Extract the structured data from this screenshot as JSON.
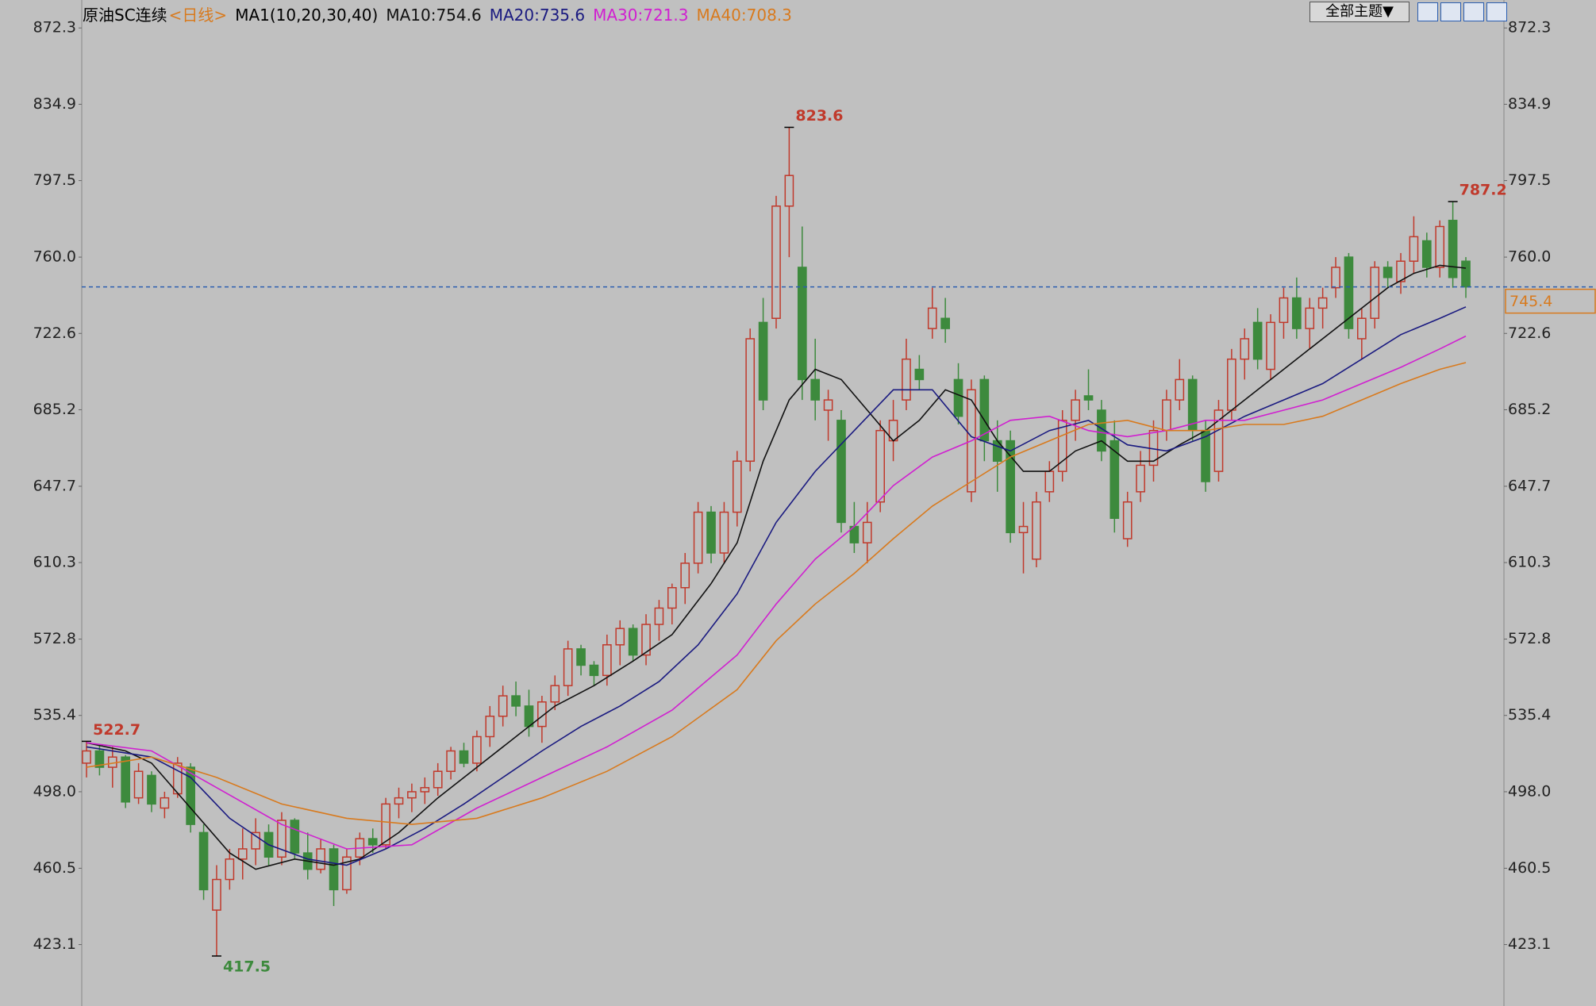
{
  "chart_data": {
    "type": "candlestick",
    "symbol": "原油SC连续",
    "period": "<日线>",
    "indicator": "MA1(10,20,30,40)",
    "theme_button": "全部主题▼",
    "up_color": "#c0392b",
    "down_color": "#3d8a3d",
    "ylim": [
      393,
      886
    ],
    "yticks": [
      423.1,
      460.5,
      {
        "value": 498,
        "label": "498.0"
      },
      535.4,
      572.8,
      610.3,
      647.7,
      685.2,
      722.6,
      {
        "value": 760,
        "label": "760.0"
      },
      797.5,
      834.9,
      872.3
    ],
    "ohlc": [
      [
        512,
        522.7,
        505,
        518
      ],
      [
        518,
        521,
        506,
        510
      ],
      [
        510,
        520,
        500,
        515
      ],
      [
        515,
        516,
        490,
        493
      ],
      [
        495,
        512,
        492,
        508
      ],
      [
        506,
        508,
        488,
        492
      ],
      [
        490,
        498,
        485,
        495
      ],
      [
        497,
        515,
        495,
        512
      ],
      [
        510,
        512,
        478,
        482
      ],
      [
        478,
        482,
        445,
        450
      ],
      [
        440,
        462,
        417.5,
        455
      ],
      [
        455,
        470,
        450,
        465
      ],
      [
        465,
        480,
        455,
        470
      ],
      [
        470,
        485,
        462,
        478
      ],
      [
        478,
        482,
        462,
        466
      ],
      [
        466,
        488,
        462,
        484
      ],
      [
        484,
        485,
        465,
        468
      ],
      [
        468,
        478,
        455,
        460
      ],
      [
        460,
        475,
        458,
        470
      ],
      [
        470,
        472,
        442,
        450
      ],
      [
        450,
        470,
        448,
        466
      ],
      [
        466,
        478,
        462,
        475
      ],
      [
        475,
        480,
        468,
        472
      ],
      [
        472,
        495,
        470,
        492
      ],
      [
        492,
        500,
        485,
        495
      ],
      [
        495,
        502,
        488,
        498
      ],
      [
        498,
        505,
        492,
        500
      ],
      [
        500,
        512,
        496,
        508
      ],
      [
        508,
        520,
        504,
        518
      ],
      [
        518,
        522,
        510,
        512
      ],
      [
        512,
        528,
        508,
        525
      ],
      [
        525,
        540,
        520,
        535
      ],
      [
        535,
        550,
        530,
        545
      ],
      [
        545,
        552,
        535,
        540
      ],
      [
        540,
        548,
        525,
        530
      ],
      [
        530,
        545,
        522,
        542
      ],
      [
        542,
        555,
        538,
        550
      ],
      [
        550,
        572,
        545,
        568
      ],
      [
        568,
        570,
        555,
        560
      ],
      [
        560,
        562,
        550,
        555
      ],
      [
        555,
        575,
        550,
        570
      ],
      [
        570,
        582,
        560,
        578
      ],
      [
        578,
        580,
        562,
        565
      ],
      [
        565,
        585,
        560,
        580
      ],
      [
        580,
        592,
        572,
        588
      ],
      [
        588,
        600,
        580,
        598
      ],
      [
        598,
        615,
        590,
        610
      ],
      [
        610,
        640,
        605,
        635
      ],
      [
        635,
        638,
        610,
        615
      ],
      [
        615,
        640,
        610,
        635
      ],
      [
        635,
        665,
        628,
        660
      ],
      [
        660,
        725,
        655,
        720
      ],
      [
        728,
        740,
        685,
        690
      ],
      [
        730,
        790,
        725,
        785
      ],
      [
        785,
        823.6,
        760,
        800
      ],
      [
        755,
        775,
        690,
        700
      ],
      [
        700,
        720,
        680,
        690
      ],
      [
        685,
        695,
        670,
        690
      ],
      [
        680,
        685,
        625,
        630
      ],
      [
        628,
        640,
        615,
        620
      ],
      [
        620,
        640,
        610,
        630
      ],
      [
        640,
        680,
        635,
        675
      ],
      [
        670,
        690,
        660,
        680
      ],
      [
        690,
        720,
        685,
        710
      ],
      [
        705,
        712,
        695,
        700
      ],
      [
        725,
        745,
        720,
        735
      ],
      [
        730,
        740,
        718,
        725
      ],
      [
        700,
        708,
        678,
        682
      ],
      [
        645,
        700,
        640,
        695
      ],
      [
        700,
        702,
        660,
        670
      ],
      [
        670,
        680,
        645,
        660
      ],
      [
        670,
        675,
        620,
        625
      ],
      [
        625,
        640,
        605,
        628
      ],
      [
        612,
        645,
        608,
        640
      ],
      [
        645,
        660,
        640,
        655
      ],
      [
        655,
        685,
        650,
        680
      ],
      [
        680,
        695,
        670,
        690
      ],
      [
        692,
        705,
        685,
        690
      ],
      [
        685,
        690,
        660,
        665
      ],
      [
        670,
        680,
        625,
        632
      ],
      [
        622,
        645,
        618,
        640
      ],
      [
        645,
        665,
        640,
        658
      ],
      [
        658,
        680,
        650,
        675
      ],
      [
        675,
        695,
        670,
        690
      ],
      [
        690,
        710,
        685,
        700
      ],
      [
        700,
        702,
        670,
        675
      ],
      [
        675,
        680,
        645,
        650
      ],
      [
        655,
        690,
        650,
        685
      ],
      [
        685,
        715,
        680,
        710
      ],
      [
        710,
        725,
        700,
        720
      ],
      [
        728,
        735,
        705,
        710
      ],
      [
        705,
        732,
        700,
        728
      ],
      [
        728,
        745,
        720,
        740
      ],
      [
        740,
        750,
        720,
        725
      ],
      [
        725,
        740,
        715,
        735
      ],
      [
        735,
        745,
        725,
        740
      ],
      [
        745,
        760,
        740,
        755
      ],
      [
        760,
        762,
        720,
        725
      ],
      [
        720,
        735,
        710,
        730
      ],
      [
        730,
        758,
        725,
        755
      ],
      [
        755,
        758,
        745,
        750
      ],
      [
        748,
        762,
        742,
        758
      ],
      [
        758,
        780,
        752,
        770
      ],
      [
        768,
        772,
        750,
        755
      ],
      [
        755,
        778,
        750,
        775
      ],
      [
        778,
        787.2,
        745,
        750
      ],
      [
        758,
        760,
        740,
        745.4
      ]
    ],
    "series": [
      {
        "name": "MA10:754.6",
        "color": "#111111",
        "x": [
          0,
          3,
          5,
          8,
          11,
          13,
          16,
          19,
          21,
          24,
          27,
          30,
          33,
          36,
          39,
          42,
          45,
          48,
          50,
          52,
          54,
          56,
          58,
          60,
          62,
          64,
          66,
          68,
          70,
          72,
          74,
          76,
          78,
          80,
          82,
          84,
          86,
          88,
          90,
          92,
          94,
          96,
          98,
          100,
          102,
          104,
          106
        ],
        "values": [
          522,
          518,
          512,
          490,
          468,
          460,
          465,
          462,
          465,
          478,
          495,
          510,
          525,
          540,
          550,
          562,
          575,
          600,
          620,
          660,
          690,
          705,
          700,
          685,
          670,
          680,
          695,
          690,
          670,
          655,
          655,
          665,
          670,
          660,
          660,
          668,
          675,
          685,
          695,
          705,
          715,
          725,
          735,
          745,
          752,
          756,
          754.6
        ]
      },
      {
        "name": "MA20:735.6",
        "color": "#1a1a80",
        "x": [
          0,
          5,
          8,
          11,
          14,
          17,
          20,
          23,
          26,
          29,
          32,
          35,
          38,
          41,
          44,
          47,
          50,
          53,
          56,
          59,
          62,
          65,
          68,
          71,
          74,
          77,
          80,
          83,
          86,
          89,
          92,
          95,
          98,
          101,
          104,
          106
        ],
        "values": [
          520,
          515,
          505,
          485,
          472,
          465,
          462,
          470,
          480,
          492,
          505,
          518,
          530,
          540,
          552,
          570,
          595,
          630,
          655,
          675,
          695,
          695,
          672,
          665,
          675,
          680,
          668,
          665,
          672,
          682,
          690,
          698,
          710,
          722,
          730,
          735.6
        ]
      },
      {
        "name": "MA30:721.3",
        "color": "#d020d0",
        "x": [
          0,
          5,
          10,
          15,
          20,
          25,
          30,
          35,
          40,
          45,
          50,
          53,
          56,
          59,
          62,
          65,
          68,
          71,
          74,
          77,
          80,
          83,
          86,
          89,
          92,
          95,
          98,
          101,
          104,
          106
        ],
        "values": [
          522,
          518,
          500,
          482,
          470,
          472,
          490,
          505,
          520,
          538,
          565,
          590,
          612,
          628,
          648,
          662,
          670,
          680,
          682,
          675,
          672,
          675,
          680,
          680,
          685,
          690,
          698,
          706,
          715,
          721.3
        ]
      },
      {
        "name": "MA40:708.3",
        "color": "#d87a1e",
        "x": [
          0,
          5,
          10,
          15,
          20,
          25,
          30,
          35,
          40,
          45,
          50,
          53,
          56,
          59,
          62,
          65,
          68,
          71,
          74,
          77,
          80,
          83,
          86,
          89,
          92,
          95,
          98,
          101,
          104,
          106
        ],
        "values": [
          510,
          515,
          505,
          492,
          485,
          482,
          485,
          495,
          508,
          525,
          548,
          572,
          590,
          605,
          622,
          638,
          650,
          662,
          670,
          678,
          680,
          675,
          675,
          678,
          678,
          682,
          690,
          698,
          705,
          708.3
        ]
      }
    ],
    "annotations": [
      {
        "x": 54,
        "y": 823.6,
        "color": "#c0392b"
      },
      {
        "x": 105,
        "y": 787.2,
        "color": "#c0392b"
      },
      {
        "x": 0,
        "y": 522.7,
        "color": "#c0392b"
      },
      {
        "x": 10,
        "y": 417.5,
        "color": "#3d8a3d"
      }
    ],
    "price_line": {
      "value": 745.4,
      "color": "#d87a1e"
    }
  }
}
